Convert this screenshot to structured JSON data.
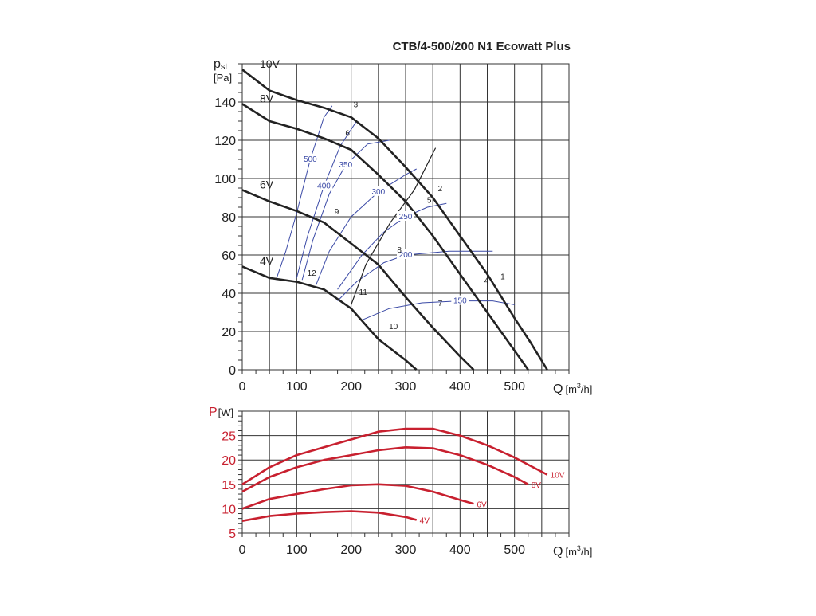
{
  "colors": {
    "curve": "#222222",
    "iso": "#3b4aa6",
    "power": "#c8202f",
    "grid": "#333333"
  },
  "chart_data": [
    {
      "type": "line",
      "title": "CTB/4-500/200 N1 Ecowatt Plus",
      "ylabel_main": "p",
      "ylabel_sub": "st",
      "yunit": "[Pa]",
      "xlabel": "Q",
      "xunit_pre": "[m",
      "xunit_sup": "3",
      "xunit_post": "/h]",
      "xlim": [
        0,
        600
      ],
      "ylim": [
        0,
        160
      ],
      "x_ticks": [
        0,
        100,
        200,
        300,
        400,
        500
      ],
      "y_ticks": [
        0,
        20,
        40,
        60,
        80,
        100,
        120,
        140
      ],
      "grid": true,
      "series": [
        {
          "name": "10V",
          "x": [
            0,
            50,
            100,
            150,
            200,
            250,
            300,
            350,
            400,
            450,
            500,
            530,
            560
          ],
          "y": [
            157,
            146,
            141,
            137,
            132,
            121,
            106,
            90,
            70,
            50,
            27,
            14,
            0
          ]
        },
        {
          "name": "8V",
          "x": [
            0,
            50,
            100,
            150,
            200,
            250,
            300,
            350,
            400,
            450,
            500,
            525
          ],
          "y": [
            139,
            130,
            126,
            121,
            115,
            102,
            88,
            70,
            50,
            30,
            10,
            0
          ]
        },
        {
          "name": "6V",
          "x": [
            0,
            50,
            100,
            150,
            200,
            250,
            300,
            350,
            400,
            425
          ],
          "y": [
            94,
            88,
            83,
            77,
            66,
            55,
            38,
            22,
            7,
            0
          ]
        },
        {
          "name": "4V",
          "x": [
            0,
            50,
            100,
            150,
            200,
            250,
            300,
            320
          ],
          "y": [
            54,
            48,
            46,
            42,
            32,
            16,
            5,
            0
          ]
        }
      ],
      "iso_lines": [
        {
          "label": "500",
          "x": [
            62,
            80,
            100,
            125,
            150,
            165
          ],
          "y": [
            47,
            62,
            82,
            110,
            132,
            138
          ]
        },
        {
          "label": "400",
          "x": [
            100,
            120,
            150,
            180,
            210
          ],
          "y": [
            48,
            70,
            96,
            117,
            130
          ]
        },
        {
          "label": "350",
          "x": [
            110,
            130,
            160,
            190,
            230,
            270
          ],
          "y": [
            47,
            68,
            92,
            107,
            118,
            120
          ]
        },
        {
          "label": "300",
          "x": [
            135,
            160,
            200,
            250,
            300,
            320
          ],
          "y": [
            44,
            62,
            80,
            93,
            102,
            105
          ]
        },
        {
          "label": "250",
          "x": [
            175,
            220,
            260,
            300,
            340,
            375
          ],
          "y": [
            42,
            60,
            72,
            80,
            85,
            87
          ]
        },
        {
          "label": "200",
          "x": [
            175,
            210,
            260,
            300,
            380,
            460
          ],
          "y": [
            36,
            46,
            56,
            60,
            62,
            62
          ]
        },
        {
          "label": "150",
          "x": [
            220,
            270,
            330,
            400,
            460,
            500
          ],
          "y": [
            26,
            32,
            35,
            36,
            36,
            34
          ]
        }
      ],
      "operating_lines": [
        {
          "x": [
            200,
            227,
            272,
            316,
            355
          ],
          "y": [
            34,
            55,
            77,
            94,
            116
          ]
        }
      ],
      "points": [
        {
          "label": "1",
          "x": 470,
          "y": 46
        },
        {
          "label": "2",
          "x": 355,
          "y": 92
        },
        {
          "label": "3",
          "x": 200,
          "y": 136
        },
        {
          "label": "4",
          "x": 440,
          "y": 44
        },
        {
          "label": "5",
          "x": 335,
          "y": 86
        },
        {
          "label": "6",
          "x": 185,
          "y": 121
        },
        {
          "label": "7",
          "x": 355,
          "y": 32
        },
        {
          "label": "8",
          "x": 280,
          "y": 60
        },
        {
          "label": "9",
          "x": 165,
          "y": 80
        },
        {
          "label": "10",
          "x": 265,
          "y": 20
        },
        {
          "label": "11",
          "x": 210,
          "y": 38
        },
        {
          "label": "12",
          "x": 115,
          "y": 48
        }
      ]
    },
    {
      "type": "line",
      "ylabel_main": "P",
      "yunit": "[W]",
      "xlabel": "Q",
      "xunit_pre": "[m",
      "xunit_sup": "3",
      "xunit_post": "/h]",
      "xlim": [
        0,
        600
      ],
      "ylim": [
        5,
        30
      ],
      "x_ticks": [
        0,
        100,
        200,
        300,
        400,
        500
      ],
      "y_ticks": [
        5,
        10,
        15,
        20,
        25
      ],
      "grid": true,
      "series": [
        {
          "name": "10V",
          "x": [
            0,
            50,
            100,
            150,
            200,
            250,
            300,
            350,
            400,
            450,
            500,
            560
          ],
          "y": [
            15,
            18.5,
            21,
            22.6,
            24.2,
            25.8,
            26.4,
            26.4,
            25,
            23,
            20.5,
            17
          ]
        },
        {
          "name": "8V",
          "x": [
            0,
            50,
            100,
            150,
            200,
            250,
            300,
            350,
            400,
            450,
            500,
            525
          ],
          "y": [
            13.5,
            16.5,
            18.5,
            20,
            21,
            22,
            22.6,
            22.4,
            21,
            19,
            16.5,
            15
          ]
        },
        {
          "name": "6V",
          "x": [
            0,
            50,
            100,
            150,
            200,
            250,
            300,
            350,
            400,
            425
          ],
          "y": [
            10,
            12,
            13,
            14,
            14.8,
            15,
            14.7,
            13.5,
            11.8,
            11
          ]
        },
        {
          "name": "4V",
          "x": [
            0,
            50,
            100,
            150,
            200,
            250,
            300,
            320
          ],
          "y": [
            7.5,
            8.5,
            9,
            9.3,
            9.5,
            9.2,
            8.3,
            7.7
          ]
        }
      ]
    }
  ]
}
